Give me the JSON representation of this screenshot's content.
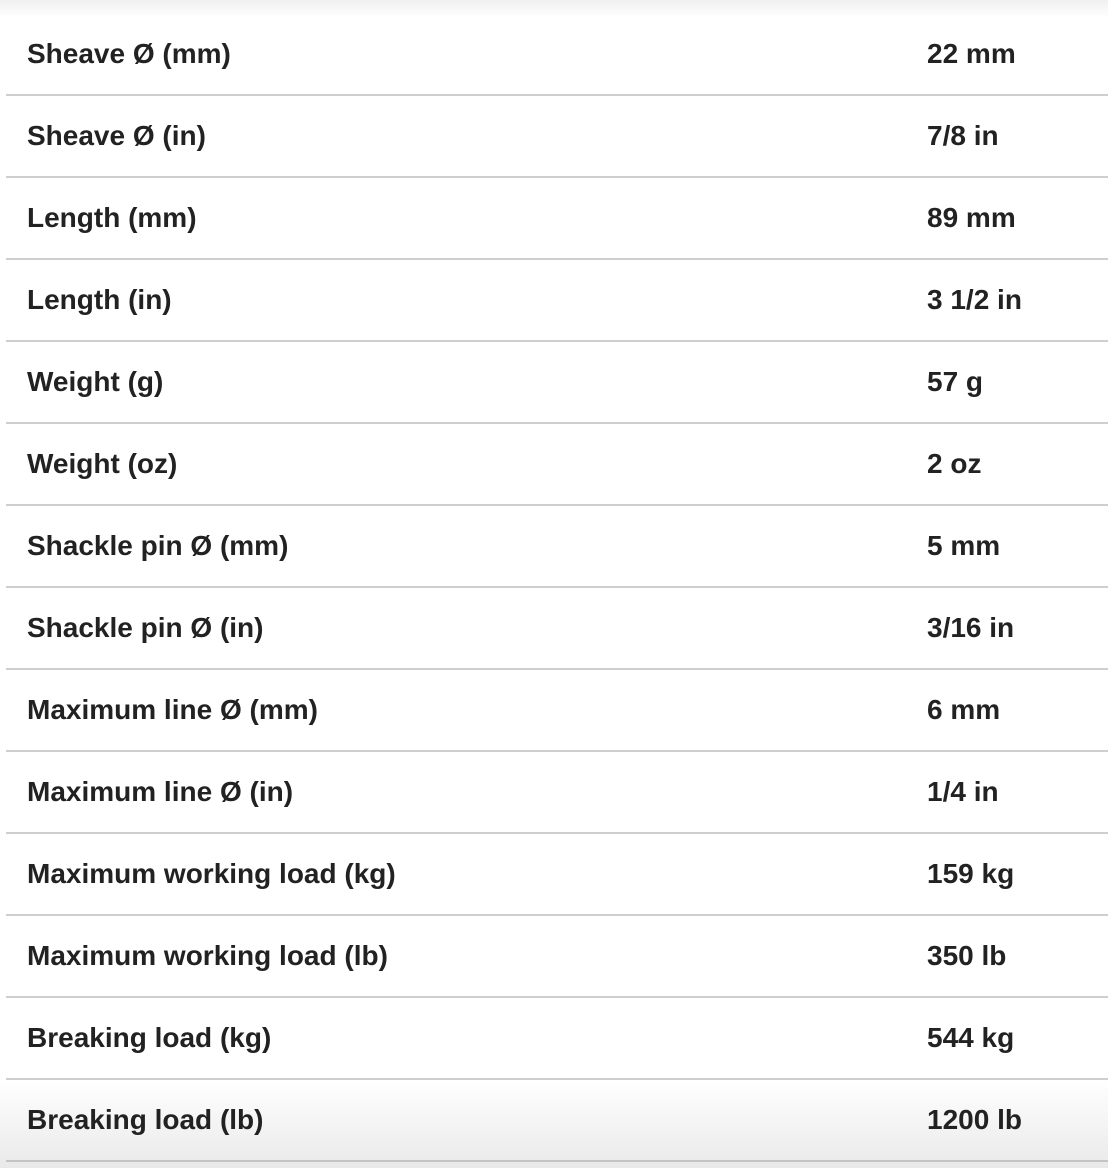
{
  "specs": [
    {
      "label": "Sheave Ø (mm)",
      "value": "22 mm"
    },
    {
      "label": "Sheave Ø (in)",
      "value": "7/8 in"
    },
    {
      "label": "Length (mm)",
      "value": "89 mm"
    },
    {
      "label": "Length (in)",
      "value": "3 1/2 in"
    },
    {
      "label": "Weight (g)",
      "value": "57 g"
    },
    {
      "label": "Weight (oz)",
      "value": "2 oz"
    },
    {
      "label": "Shackle pin Ø (mm)",
      "value": "5 mm"
    },
    {
      "label": "Shackle pin Ø (in)",
      "value": "3/16 in"
    },
    {
      "label": "Maximum line Ø (mm)",
      "value": "6 mm"
    },
    {
      "label": "Maximum line Ø (in)",
      "value": "1/4 in"
    },
    {
      "label": "Maximum working load (kg)",
      "value": "159 kg"
    },
    {
      "label": "Maximum working load (lb)",
      "value": "350 lb"
    },
    {
      "label": "Breaking load (kg)",
      "value": "544 kg"
    },
    {
      "label": "Breaking load (lb)",
      "value": "1200 lb"
    }
  ]
}
